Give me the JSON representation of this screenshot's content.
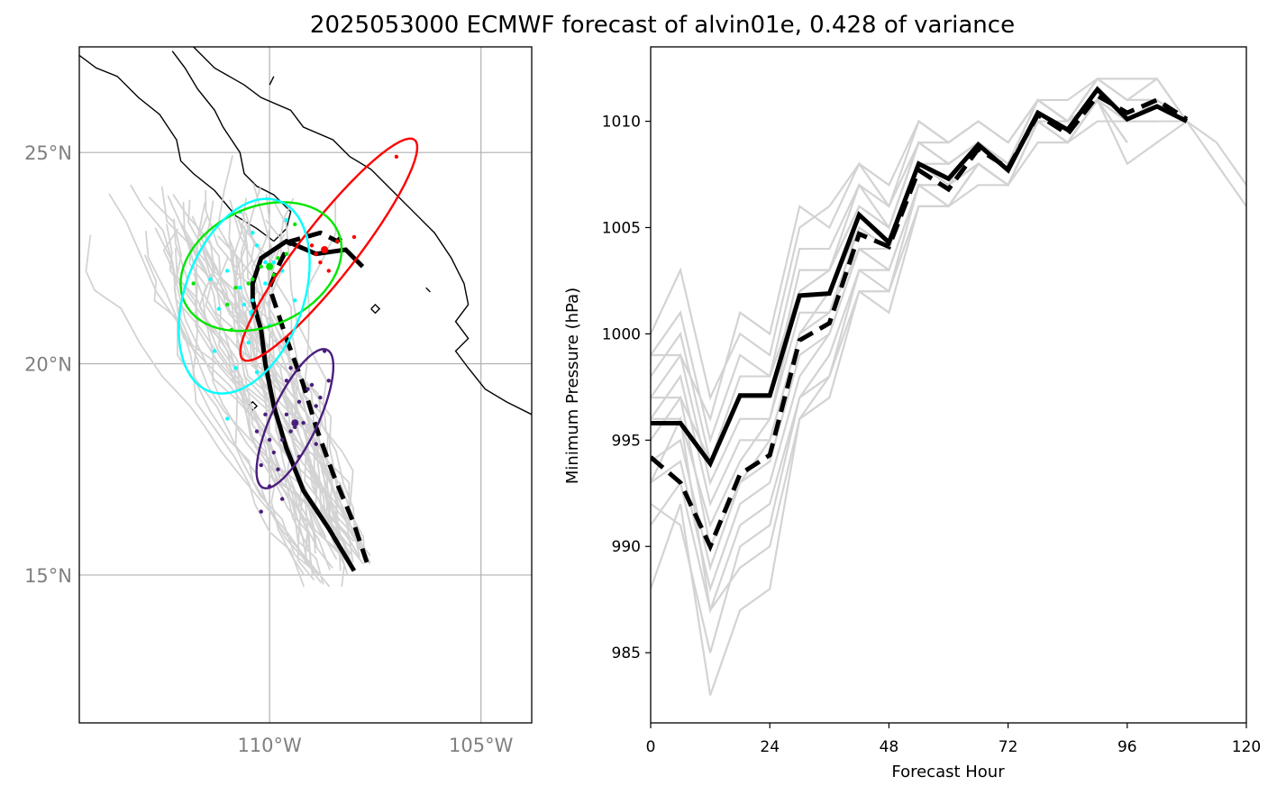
{
  "title": "2025053000 ECMWF forecast of alvin01e, 0.428 of variance",
  "colors": {
    "ensemble": "#d3d3d3",
    "mean": "#000000",
    "cluster_red": "#ff0000",
    "cluster_green": "#00e600",
    "cluster_cyan": "#00ffff",
    "cluster_purple": "#4b1e7c",
    "coast": "#000000",
    "grid": "#b0b0b0"
  },
  "chart_data": [
    {
      "type": "scatter",
      "subtype": "map-track-plot",
      "lon_ticks": [
        "110°W",
        "105°W"
      ],
      "lat_ticks": [
        "25°N",
        "20°N",
        "15°N"
      ],
      "lon_tick_values": [
        -110,
        -105
      ],
      "lat_tick_values": [
        25,
        20,
        15
      ],
      "xlim": [
        -114.5,
        -103.8
      ],
      "ylim": [
        11.5,
        27.5
      ],
      "grid": true,
      "mean_track_solid": [
        [
          -108.0,
          15.1
        ],
        [
          -108.6,
          16.1
        ],
        [
          -109.2,
          17.0
        ],
        [
          -109.6,
          18.0
        ],
        [
          -109.9,
          19.0
        ],
        [
          -110.1,
          20.0
        ],
        [
          -110.2,
          20.8
        ],
        [
          -110.4,
          21.5
        ],
        [
          -110.4,
          21.9
        ],
        [
          -110.2,
          22.5
        ],
        [
          -109.6,
          22.9
        ],
        [
          -108.9,
          22.6
        ],
        [
          -108.2,
          22.7
        ],
        [
          -107.8,
          22.3
        ]
      ],
      "mean_track_dashed": [
        [
          -107.7,
          15.3
        ],
        [
          -108.0,
          16.2
        ],
        [
          -108.5,
          17.4
        ],
        [
          -108.9,
          18.5
        ],
        [
          -109.2,
          19.5
        ],
        [
          -109.6,
          20.6
        ],
        [
          -110.0,
          21.8
        ],
        [
          -109.8,
          22.3
        ],
        [
          -109.5,
          22.9
        ],
        [
          -108.8,
          23.1
        ],
        [
          -108.4,
          22.9
        ],
        [
          -108.2,
          23.1
        ]
      ],
      "clusters": [
        {
          "color": "red",
          "center": [
            -108.7,
            22.7
          ],
          "points": [
            [
              -107.0,
              24.9
            ],
            [
              -108.4,
              22.9
            ],
            [
              -108.9,
              22.6
            ],
            [
              -109.0,
              22.8
            ],
            [
              -108.6,
              22.2
            ],
            [
              -108.0,
              23.0
            ],
            [
              -108.8,
              22.4
            ]
          ]
        },
        {
          "color": "green",
          "center": [
            -110.0,
            22.3
          ],
          "points": [
            [
              -111.8,
              21.9
            ],
            [
              -110.8,
              21.8
            ],
            [
              -110.4,
              22.0
            ],
            [
              -110.2,
              22.3
            ],
            [
              -109.8,
              22.5
            ],
            [
              -109.6,
              22.6
            ],
            [
              -109.9,
              22.1
            ],
            [
              -110.5,
              21.9
            ],
            [
              -109.4,
              23.3
            ],
            [
              -110.9,
              20.8
            ],
            [
              -111.0,
              21.4
            ]
          ]
        },
        {
          "color": "cyan",
          "center": [
            -110.4,
            21.2
          ],
          "points": [
            [
              -111.4,
              22.0
            ],
            [
              -111.0,
              22.2
            ],
            [
              -110.7,
              21.8
            ],
            [
              -110.4,
              21.5
            ],
            [
              -110.6,
              21.4
            ],
            [
              -110.1,
              21.9
            ],
            [
              -109.9,
              22.4
            ],
            [
              -110.3,
              22.8
            ],
            [
              -110.7,
              23.6
            ],
            [
              -110.4,
              23.1
            ],
            [
              -109.7,
              22.2
            ],
            [
              -109.4,
              21.5
            ],
            [
              -110.0,
              20.9
            ],
            [
              -110.5,
              20.5
            ],
            [
              -111.3,
              20.3
            ],
            [
              -110.8,
              19.9
            ],
            [
              -111.0,
              18.7
            ],
            [
              -110.3,
              19.8
            ],
            [
              -111.2,
              21.3
            ],
            [
              -110.1,
              22.4
            ],
            [
              -109.6,
              23.4
            ]
          ]
        },
        {
          "color": "purple",
          "center": [
            -109.4,
            18.6
          ],
          "points": [
            [
              -108.7,
              20.3
            ],
            [
              -108.6,
              19.6
            ],
            [
              -109.0,
              19.5
            ],
            [
              -109.3,
              19.1
            ],
            [
              -109.6,
              18.8
            ],
            [
              -109.4,
              18.5
            ],
            [
              -109.7,
              18.2
            ],
            [
              -109.9,
              17.9
            ],
            [
              -110.2,
              17.6
            ],
            [
              -110.0,
              17.1
            ],
            [
              -110.2,
              16.5
            ],
            [
              -109.2,
              18.6
            ],
            [
              -108.9,
              19.0
            ],
            [
              -109.5,
              18.4
            ],
            [
              -109.8,
              17.5
            ],
            [
              -109.1,
              19.4
            ],
            [
              -110.3,
              18.4
            ],
            [
              -108.9,
              18.1
            ],
            [
              -110.0,
              18.2
            ],
            [
              -109.5,
              19.9
            ],
            [
              -109.7,
              16.8
            ],
            [
              -108.8,
              19.2
            ],
            [
              -110.1,
              18.8
            ],
            [
              -109.3,
              17.8
            ],
            [
              -109.6,
              19.6
            ]
          ]
        }
      ],
      "ellipses": [
        {
          "color": "red",
          "center": [
            -108.6,
            22.7
          ],
          "semi_major": 3.3,
          "semi_minor": 0.65,
          "angle_deg": 52
        },
        {
          "color": "green",
          "center": [
            -110.2,
            22.3
          ],
          "semi_major": 2.0,
          "semi_minor": 1.4,
          "angle_deg": 25
        },
        {
          "color": "cyan",
          "center": [
            -110.6,
            21.6
          ],
          "semi_major": 2.4,
          "semi_minor": 1.4,
          "angle_deg": 70
        },
        {
          "color": "purple",
          "center": [
            -109.4,
            18.7
          ],
          "semi_major": 1.8,
          "semi_minor": 0.55,
          "angle_deg": 65
        }
      ]
    },
    {
      "type": "line",
      "xlabel": "Forecast Hour",
      "ylabel": "Minimum Pressure (hPa)",
      "xlim": [
        0,
        120
      ],
      "ylim": [
        981.7,
        1013.5
      ],
      "xticks": [
        0,
        24,
        48,
        72,
        96,
        120
      ],
      "yticks": [
        985,
        990,
        995,
        1000,
        1005,
        1010
      ],
      "x": [
        0,
        6,
        12,
        18,
        24,
        30,
        36,
        42,
        48,
        54,
        60,
        66,
        72,
        78,
        84,
        90,
        96,
        102,
        108
      ],
      "series": [
        {
          "style": "mean-solid",
          "values": [
            995.8,
            995.8,
            993.9,
            997.1,
            997.1,
            1001.8,
            1001.9,
            1005.6,
            1004.3,
            1008.0,
            1007.3,
            1008.9,
            1007.7,
            1010.4,
            1009.6,
            1011.5,
            1010.1,
            1010.7,
            1010.0
          ]
        },
        {
          "style": "mean-dashed",
          "values": [
            994.2,
            993.0,
            990.0,
            993.4,
            994.3,
            999.7,
            1000.5,
            1004.7,
            1004.1,
            1007.7,
            1006.8,
            1008.7,
            1007.8,
            1010.3,
            1009.4,
            1011.2,
            1010.4,
            1011.0,
            1010.1
          ]
        }
      ],
      "ensemble": [
        [
          995,
          997,
          990,
          993,
          995,
          1000,
          1001,
          1004,
          1004,
          1008,
          1007,
          1009,
          1008,
          1010,
          1010,
          1011,
          1010,
          1011,
          1010
        ],
        [
          997,
          999,
          993,
          996,
          996,
          1002,
          1003,
          1006,
          1005,
          1009,
          1008,
          1009,
          1008,
          1011,
          1010,
          1012,
          1011,
          1012,
          1010
        ],
        [
          993,
          994,
          988,
          992,
          993,
          998,
          1000,
          1004,
          1003,
          1007,
          1007,
          1008,
          1007,
          1010,
          1009,
          1011,
          1010,
          1010,
          1010,
          1008,
          1006
        ],
        [
          999,
          1001,
          995,
          999,
          998,
          1004,
          1004,
          1007,
          1006,
          1009,
          1009,
          1010,
          1009,
          1011,
          1010,
          1012,
          1011,
          1011
        ],
        [
          991,
          993,
          987,
          991,
          992,
          997,
          998,
          1003,
          1003,
          1007,
          1006,
          1008,
          1007,
          1010,
          1009,
          1011,
          1009
        ],
        [
          996,
          996,
          991,
          994,
          996,
          1001,
          1001,
          1005,
          1004,
          1008,
          1007,
          1009,
          1008,
          1011,
          1010,
          1012,
          1012,
          1012,
          1010
        ],
        [
          988,
          992,
          983,
          987,
          988,
          996,
          998,
          1002,
          1001,
          1006,
          1006,
          1008,
          1007,
          1010,
          1009,
          1011,
          1008,
          1009,
          1010,
          1009,
          1007
        ],
        [
          1000,
          1003,
          997,
          1000,
          999,
          1005,
          1006,
          1008,
          1007,
          1010,
          1009,
          1010,
          1009,
          1011,
          1011,
          1012
        ],
        [
          994,
          995,
          989,
          993,
          994,
          999,
          1000,
          1004,
          1003,
          1007,
          1007,
          1008,
          1007,
          1010,
          1009,
          1011,
          1010,
          1010
        ],
        [
          998,
          1000,
          994,
          997,
          997,
          1003,
          1003,
          1006,
          1005,
          1009,
          1008,
          1009,
          1008,
          1011,
          1010,
          1011,
          1009
        ],
        [
          992,
          991,
          985,
          990,
          991,
          997,
          999,
          1003,
          1002,
          1007,
          1006,
          1008,
          1007,
          1010,
          1009,
          1011,
          1010,
          1011
        ],
        [
          996,
          998,
          992,
          995,
          995,
          1000,
          1002,
          1005,
          1004,
          1008,
          1008,
          1009,
          1008,
          1010,
          1010,
          1012,
          1011,
          1011,
          1010
        ],
        [
          999,
          999,
          996,
          1001,
          1000,
          1006,
          1005,
          1008,
          1006,
          1010,
          1009,
          1010,
          1009,
          1011,
          1010,
          1011
        ],
        [
          993,
          996,
          987,
          989,
          990,
          996,
          997,
          1002,
          1002,
          1006,
          1006,
          1007,
          1007,
          1009,
          1009,
          1010,
          1010,
          1010
        ],
        [
          997,
          997,
          994,
          998,
          998,
          1002,
          1003,
          1007,
          1005,
          1009,
          1008,
          1009,
          1008,
          1011,
          1010,
          1012,
          1011,
          1011,
          1010
        ]
      ]
    }
  ]
}
